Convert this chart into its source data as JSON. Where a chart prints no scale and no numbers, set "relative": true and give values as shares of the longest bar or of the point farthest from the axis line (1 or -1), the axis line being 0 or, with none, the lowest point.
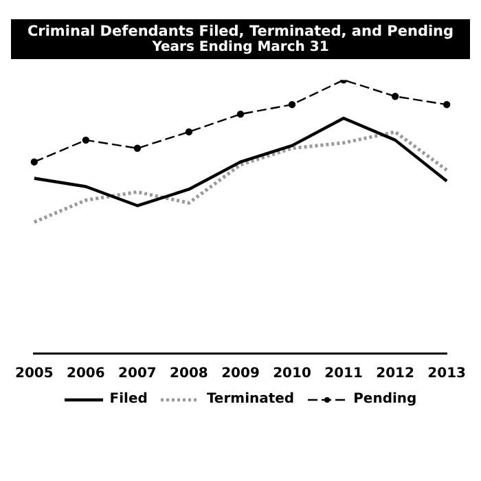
{
  "chart_data": {
    "type": "line",
    "title": "Criminal Defendants Filed, Terminated, and Pending",
    "subtitle": "Years Ending March 31",
    "relative": true,
    "categories": [
      "2005",
      "2006",
      "2007",
      "2008",
      "2009",
      "2010",
      "2011",
      "2012",
      "2013"
    ],
    "series": [
      {
        "name": "Filed",
        "color": "#000000",
        "line_style": "solid",
        "marker": "none",
        "values": [
          0.64,
          0.61,
          0.54,
          0.6,
          0.7,
          0.76,
          0.86,
          0.78,
          0.63
        ]
      },
      {
        "name": "Terminated",
        "color": "#999999",
        "line_style": "dotted",
        "marker": "none",
        "values": [
          0.48,
          0.56,
          0.59,
          0.55,
          0.69,
          0.75,
          0.77,
          0.81,
          0.67
        ]
      },
      {
        "name": "Pending",
        "color": "#000000",
        "line_style": "dashed",
        "marker": "circle",
        "values": [
          0.7,
          0.78,
          0.75,
          0.81,
          0.875,
          0.91,
          1,
          0.94,
          0.91
        ]
      }
    ],
    "grid": false,
    "legend": "bottom"
  }
}
